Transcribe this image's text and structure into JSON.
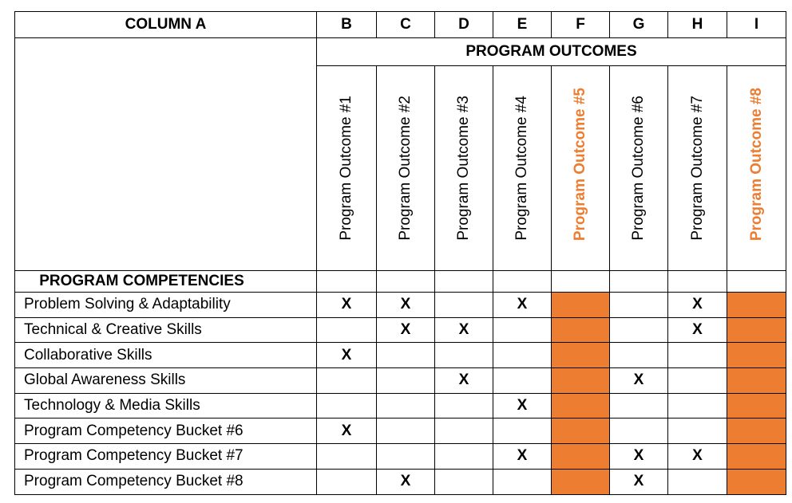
{
  "header": {
    "column_a": "COLUMN A",
    "letters": [
      "B",
      "C",
      "D",
      "E",
      "F",
      "G",
      "H",
      "I"
    ],
    "program_outcomes_title": "PROGRAM OUTCOMES"
  },
  "outcomes": [
    {
      "label": "Program Outcome #1",
      "highlight": false
    },
    {
      "label": "Program Outcome #2",
      "highlight": false
    },
    {
      "label": "Program Outcome #3",
      "highlight": false
    },
    {
      "label": "Program Outcome #4",
      "highlight": false
    },
    {
      "label": "Program Outcome #5",
      "highlight": true
    },
    {
      "label": "Program Outcome #6",
      "highlight": false
    },
    {
      "label": "Program Outcome #7",
      "highlight": false
    },
    {
      "label": "Program Outcome #8",
      "highlight": true
    }
  ],
  "competencies_title": "PROGRAM COMPETENCIES",
  "rows": [
    {
      "label": "Problem Solving & Adaptability",
      "marks": [
        "X",
        "X",
        "",
        "X",
        "",
        "",
        "X",
        ""
      ]
    },
    {
      "label": "Technical & Creative Skills",
      "marks": [
        "",
        "X",
        "X",
        "",
        "",
        "",
        "X",
        ""
      ]
    },
    {
      "label": "Collaborative Skills",
      "marks": [
        "X",
        "",
        "",
        "",
        "",
        "",
        "",
        ""
      ]
    },
    {
      "label": "Global Awareness Skills",
      "marks": [
        "",
        "",
        "X",
        "",
        "",
        "X",
        "",
        ""
      ]
    },
    {
      "label": "Technology & Media Skills",
      "marks": [
        "",
        "",
        "",
        "X",
        "",
        "",
        "",
        ""
      ]
    },
    {
      "label": "Program Competency Bucket #6",
      "marks": [
        "X",
        "",
        "",
        "",
        "",
        "",
        "",
        ""
      ]
    },
    {
      "label": "Program Competency Bucket #7",
      "marks": [
        "",
        "",
        "",
        "X",
        "",
        "X",
        "X",
        ""
      ]
    },
    {
      "label": "Program Competency Bucket #8",
      "marks": [
        "",
        "X",
        "",
        "",
        "",
        "X",
        "",
        ""
      ]
    }
  ],
  "colors": {
    "highlight": "#ed7d31",
    "border": "#000000"
  }
}
